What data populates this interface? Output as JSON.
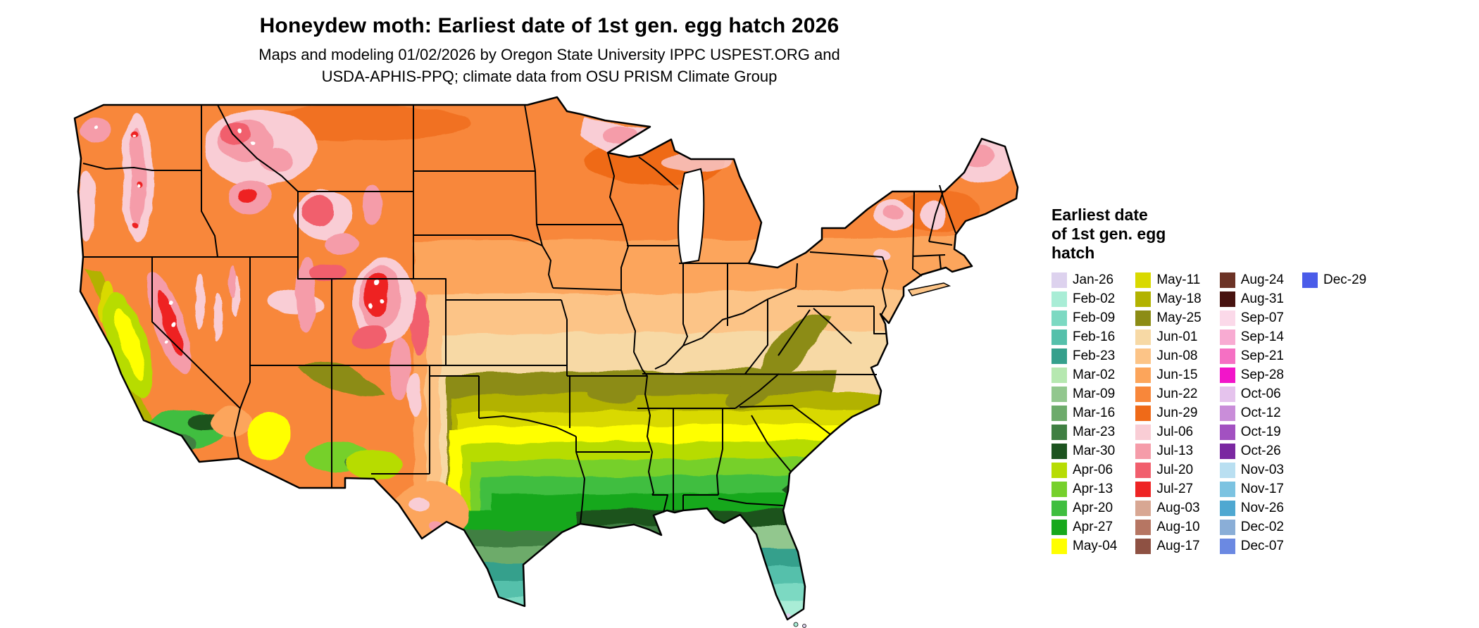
{
  "header": {
    "title": "Honeydew moth: Earliest date of 1st gen. egg hatch 2026",
    "subtitle_line1": "Maps and modeling 01/02/2026 by Oregon State University IPPC USPEST.ORG and",
    "subtitle_line2": "USDA-APHIS-PPQ; climate data from OSU PRISM Climate Group"
  },
  "legend": {
    "title_line1": "Earliest date",
    "title_line2": "of 1st gen. egg",
    "title_line3": "hatch",
    "columns": [
      [
        {
          "label": "Jan-26",
          "color": "#ddd2ee"
        },
        {
          "label": "Feb-02",
          "color": "#a9edd6"
        },
        {
          "label": "Feb-09",
          "color": "#7cd9c2"
        },
        {
          "label": "Feb-16",
          "color": "#55c0ab"
        },
        {
          "label": "Feb-23",
          "color": "#35a08c"
        },
        {
          "label": "Mar-02",
          "color": "#b6e8b0"
        },
        {
          "label": "Mar-09",
          "color": "#92c78e"
        },
        {
          "label": "Mar-16",
          "color": "#6dab6b"
        },
        {
          "label": "Mar-23",
          "color": "#3f7f42"
        },
        {
          "label": "Mar-30",
          "color": "#1c531f"
        },
        {
          "label": "Apr-06",
          "color": "#b7dc04"
        },
        {
          "label": "Apr-13",
          "color": "#76d02c"
        },
        {
          "label": "Apr-20",
          "color": "#3fbe3f"
        },
        {
          "label": "Apr-27",
          "color": "#17a81c"
        },
        {
          "label": "May-04",
          "color": "#ffff00"
        }
      ],
      [
        {
          "label": "May-11",
          "color": "#d9d900"
        },
        {
          "label": "May-18",
          "color": "#b2b200"
        },
        {
          "label": "May-25",
          "color": "#8c8c15"
        },
        {
          "label": "Jun-01",
          "color": "#f7d9a5"
        },
        {
          "label": "Jun-08",
          "color": "#fcc487"
        },
        {
          "label": "Jun-15",
          "color": "#fca55b"
        },
        {
          "label": "Jun-22",
          "color": "#f8873a"
        },
        {
          "label": "Jun-29",
          "color": "#ef6a18"
        },
        {
          "label": "Jul-06",
          "color": "#f9cdd5"
        },
        {
          "label": "Jul-13",
          "color": "#f59ca9"
        },
        {
          "label": "Jul-20",
          "color": "#f15f6d"
        },
        {
          "label": "Jul-27",
          "color": "#ee2424"
        },
        {
          "label": "Aug-03",
          "color": "#d8a793"
        },
        {
          "label": "Aug-10",
          "color": "#b67663"
        },
        {
          "label": "Aug-17",
          "color": "#8e5143"
        }
      ],
      [
        {
          "label": "Aug-24",
          "color": "#6c3326"
        },
        {
          "label": "Aug-31",
          "color": "#471310"
        },
        {
          "label": "Sep-07",
          "color": "#fbd9e9"
        },
        {
          "label": "Sep-14",
          "color": "#f8abd2"
        },
        {
          "label": "Sep-21",
          "color": "#f570c3"
        },
        {
          "label": "Sep-28",
          "color": "#f215c9"
        },
        {
          "label": "Oct-06",
          "color": "#e5c3ed"
        },
        {
          "label": "Oct-12",
          "color": "#c98dd9"
        },
        {
          "label": "Oct-19",
          "color": "#a251c1"
        },
        {
          "label": "Oct-26",
          "color": "#7a28a1"
        },
        {
          "label": "Nov-03",
          "color": "#b9dff1"
        },
        {
          "label": "Nov-17",
          "color": "#7cc3e1"
        },
        {
          "label": "Nov-26",
          "color": "#4fa8d1"
        },
        {
          "label": "Dec-02",
          "color": "#8aaed7"
        },
        {
          "label": "Dec-07",
          "color": "#6b89e2"
        }
      ],
      [
        {
          "label": "Dec-29",
          "color": "#4a5ce9"
        }
      ]
    ]
  }
}
